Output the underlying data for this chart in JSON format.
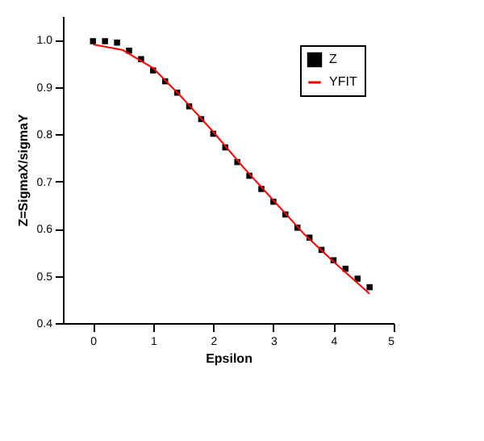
{
  "chart_data": {
    "type": "scatter",
    "xlabel": "Epsilon",
    "ylabel": "Z=SigmaX/sigmaY",
    "xlim": [
      -0.5,
      5
    ],
    "xticks": [
      0,
      1,
      2,
      3,
      4,
      5
    ],
    "ylim": [
      0.4,
      1.05
    ],
    "yticks": [
      0.4,
      0.5,
      0.6,
      0.7,
      0.8,
      0.9,
      {
        "value": 1,
        "label": "1.0"
      }
    ],
    "grid": false,
    "legend": "top right",
    "series": [
      {
        "name": "Z",
        "marker": "square",
        "color": "#000000",
        "x": [
          0,
          0.2,
          0.4,
          0.6,
          0.8,
          1.0,
          1.2,
          1.4,
          1.6,
          1.8,
          2.0,
          2.2,
          2.4,
          2.6,
          2.8,
          3.0,
          3.2,
          3.4,
          3.6,
          3.8,
          4.0,
          4.2,
          4.4,
          4.6
        ],
        "values": [
          0.997,
          0.997,
          0.994,
          0.977,
          0.959,
          0.935,
          0.912,
          0.888,
          0.859,
          0.832,
          0.801,
          0.772,
          0.741,
          0.712,
          0.684,
          0.657,
          0.63,
          0.602,
          0.581,
          0.555,
          0.533,
          0.515,
          0.494,
          0.476
        ]
      },
      {
        "name": "YFIT",
        "type": "line",
        "color": "#ff0000",
        "line_style": "solid",
        "x": [
          0,
          0.5,
          1.0,
          1.5,
          2.0,
          2.5,
          3.0,
          3.5,
          4.0,
          4.6
        ],
        "values": [
          0.99,
          0.978,
          0.94,
          0.875,
          0.805,
          0.73,
          0.66,
          0.59,
          0.53,
          0.462
        ]
      }
    ]
  }
}
